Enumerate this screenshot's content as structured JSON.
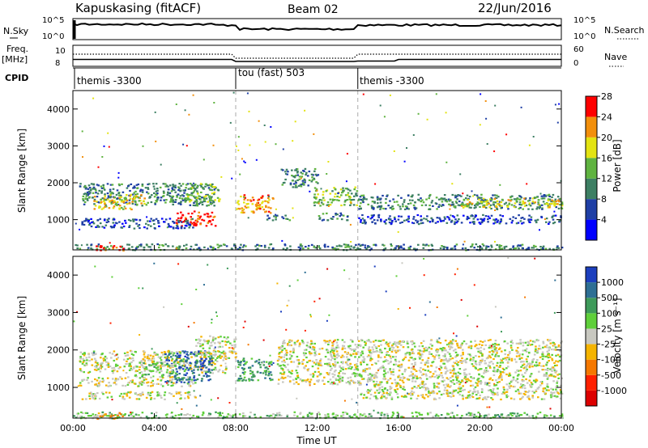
{
  "header": {
    "station": "Kapuskasing (fitACF)",
    "beam": "Beam 02",
    "date": "22/Jun/2016"
  },
  "noise_panel": {
    "left_label": "N.Sky",
    "right_label": "N.Search",
    "left_ticks": [
      "10^5",
      "10^0"
    ],
    "right_ticks": [
      "10^5",
      "10^0"
    ]
  },
  "freq_panel": {
    "left_label_1": "Freq.",
    "left_label_2": "[MHz]",
    "left_ticks": [
      "10",
      "8"
    ],
    "right_label": "Nave",
    "right_ticks": [
      "60",
      "0"
    ]
  },
  "cpid_panel": {
    "label": "CPID",
    "segments": [
      {
        "text": "themis -3300",
        "start_h": 0
      },
      {
        "text": "tou (fast) 503",
        "start_h": 8
      },
      {
        "text": "themis -3300",
        "start_h": 14
      }
    ]
  },
  "chart_data": [
    {
      "type": "heatmap",
      "name": "power",
      "ylabel": "Slant Range [km]",
      "x_ticks": [
        "00:00",
        "04:00",
        "08:00",
        "12:00",
        "16:00",
        "20:00",
        "00:00"
      ],
      "xlim_hours": [
        0,
        24
      ],
      "y_ticks": [
        1000,
        2000,
        3000,
        4000
      ],
      "ylim_km": [
        180,
        4500
      ],
      "colorbar": {
        "label": "Power [dB]",
        "ticks": [
          "4",
          "8",
          "12",
          "16",
          "20",
          "24",
          "28"
        ],
        "colors": [
          "#0000ff",
          "#1f3fa5",
          "#3d7f63",
          "#5fb340",
          "#e3e312",
          "#f28f0c",
          "#ff0000"
        ]
      },
      "bands": [
        {
          "x0": 0.3,
          "x1": 7.0,
          "y0": 1400,
          "y1": 2000,
          "level": 2
        },
        {
          "x0": 1.0,
          "x1": 3.5,
          "y0": 1300,
          "y1": 1700,
          "level": 4
        },
        {
          "x0": 5.5,
          "x1": 7.2,
          "y0": 1500,
          "y1": 2000,
          "level": 3
        },
        {
          "x0": 5.0,
          "x1": 7.0,
          "y0": 850,
          "y1": 1250,
          "level": 6
        },
        {
          "x0": 0.3,
          "x1": 6.0,
          "y0": 780,
          "y1": 1050,
          "level": 1
        },
        {
          "x0": 8.0,
          "x1": 9.8,
          "y0": 1200,
          "y1": 1700,
          "level": 5
        },
        {
          "x0": 10.2,
          "x1": 12.0,
          "y0": 1900,
          "y1": 2400,
          "level": 2
        },
        {
          "x0": 11.8,
          "x1": 14.0,
          "y0": 1400,
          "y1": 1900,
          "level": 3
        },
        {
          "x0": 12.0,
          "x1": 13.5,
          "y0": 1000,
          "y1": 1200,
          "level": 2
        },
        {
          "x0": 9.5,
          "x1": 10.8,
          "y0": 1000,
          "y1": 1150,
          "level": 2
        },
        {
          "x0": 14.0,
          "x1": 24.0,
          "y0": 1300,
          "y1": 1700,
          "level": 2
        },
        {
          "x0": 19.0,
          "x1": 24.0,
          "y0": 1350,
          "y1": 1600,
          "level": 4
        },
        {
          "x0": 14.0,
          "x1": 24.0,
          "y0": 900,
          "y1": 1150,
          "level": 1
        },
        {
          "x0": 0.0,
          "x1": 24.0,
          "y0": 190,
          "y1": 360,
          "level": 2
        },
        {
          "x0": 1.0,
          "x1": 2.5,
          "y0": 180,
          "y1": 320,
          "level": 6
        }
      ]
    },
    {
      "type": "heatmap",
      "name": "velocity",
      "ylabel": "Slant Range [km]",
      "xlabel": "Time UT",
      "x_ticks": [
        "00:00",
        "04:00",
        "08:00",
        "12:00",
        "16:00",
        "20:00",
        "00:00"
      ],
      "xlim_hours": [
        0,
        24
      ],
      "y_ticks": [
        1000,
        2000,
        3000,
        4000
      ],
      "ylim_km": [
        180,
        4500
      ],
      "colorbar": {
        "label": "Velocity [m s⁻¹]",
        "ticks": [
          "1000",
          "500",
          "100",
          "25",
          "-25",
          "-100",
          "-500",
          "-1000"
        ],
        "colors": [
          "#1c3fbe",
          "#2e6f94",
          "#3e9a5a",
          "#5fcf3a",
          "#c8c8c0",
          "#f5b400",
          "#f57800",
          "#ff2000",
          "#dd0000"
        ]
      },
      "bands": [
        {
          "x0": 0.3,
          "x1": 7.5,
          "y0": 1400,
          "y1": 2000,
          "level": 4
        },
        {
          "x0": 0.3,
          "x1": 6.0,
          "y0": 1050,
          "y1": 1300,
          "level": 4
        },
        {
          "x0": 0.3,
          "x1": 6.0,
          "y0": 700,
          "y1": 900,
          "level": 4
        },
        {
          "x0": 4.5,
          "x1": 6.8,
          "y0": 1150,
          "y1": 2000,
          "level": 1
        },
        {
          "x0": 3.0,
          "x1": 5.0,
          "y0": 1300,
          "y1": 1700,
          "level": 3
        },
        {
          "x0": 8.0,
          "x1": 9.8,
          "y0": 1200,
          "y1": 1800,
          "level": 2
        },
        {
          "x0": 6.0,
          "x1": 8.0,
          "y0": 1800,
          "y1": 2400,
          "level": 4
        },
        {
          "x0": 10.0,
          "x1": 24.0,
          "y0": 1100,
          "y1": 2300,
          "level": 4
        },
        {
          "x0": 14.0,
          "x1": 24.0,
          "y0": 700,
          "y1": 1100,
          "level": 4
        },
        {
          "x0": 0.0,
          "x1": 24.0,
          "y0": 190,
          "y1": 360,
          "level": 3
        },
        {
          "x0": 1.0,
          "x1": 2.5,
          "y0": 180,
          "y1": 340,
          "level": 5
        }
      ]
    }
  ]
}
